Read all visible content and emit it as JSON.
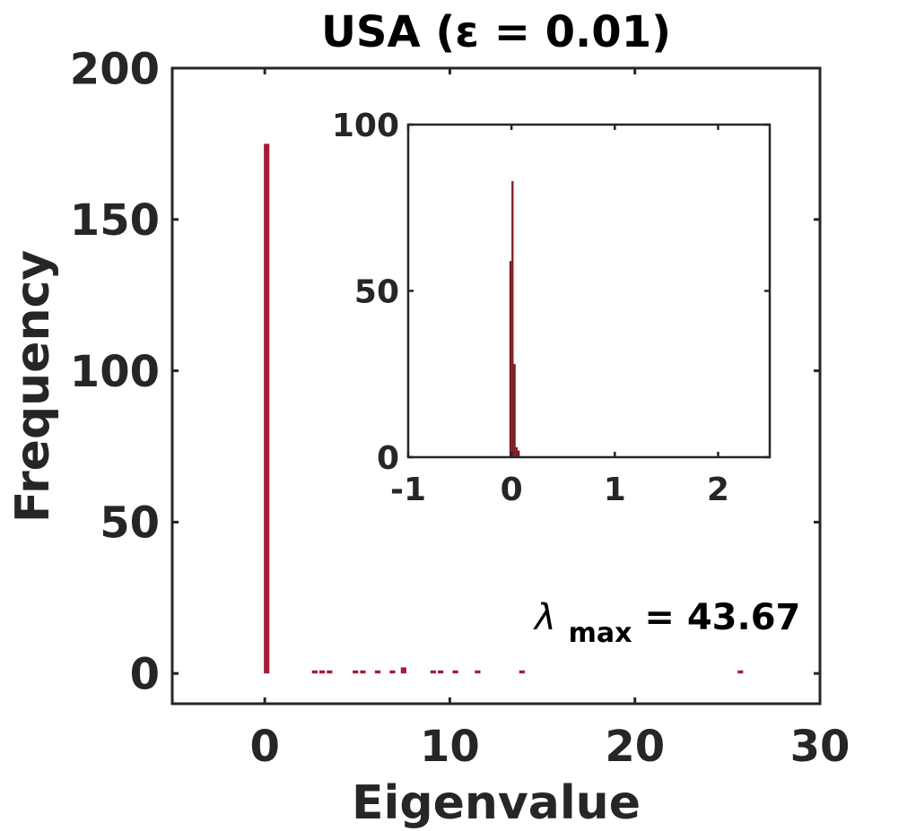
{
  "chart_data": [
    {
      "type": "bar",
      "title": "USA (ε = 0.01)",
      "xlabel": "Eigenvalue",
      "ylabel": "Frequency",
      "xlim": [
        -5,
        30
      ],
      "ylim": [
        -10,
        200
      ],
      "xticks": [
        "0",
        "10",
        "20",
        "30"
      ],
      "yticks": [
        "0",
        "50",
        "100",
        "150",
        "200"
      ],
      "grid": false,
      "color": "#a51c36",
      "annotation": {
        "symbol": "λ",
        "subscript": "max",
        "text": " = 43.67"
      },
      "bins": [
        {
          "x": 0.1,
          "y": 175
        },
        {
          "x": 2.7,
          "y": 1
        },
        {
          "x": 3.1,
          "y": 1
        },
        {
          "x": 3.5,
          "y": 1
        },
        {
          "x": 4.9,
          "y": 1
        },
        {
          "x": 5.3,
          "y": 1
        },
        {
          "x": 6.1,
          "y": 1
        },
        {
          "x": 6.9,
          "y": 1
        },
        {
          "x": 7.5,
          "y": 2
        },
        {
          "x": 9.1,
          "y": 1
        },
        {
          "x": 9.5,
          "y": 1
        },
        {
          "x": 10.3,
          "y": 1
        },
        {
          "x": 11.5,
          "y": 1
        },
        {
          "x": 13.9,
          "y": 1
        },
        {
          "x": 25.7,
          "y": 1
        }
      ]
    },
    {
      "type": "bar",
      "role": "inset",
      "xlim": [
        -1,
        2.5
      ],
      "ylim": [
        0,
        100
      ],
      "xticks": [
        "-1",
        "0",
        "1",
        "2"
      ],
      "yticks": [
        "0",
        "50",
        "100"
      ],
      "color": "#7d1a24",
      "bins": [
        {
          "x": -0.01,
          "y": 59
        },
        {
          "x": 0.01,
          "y": 83
        },
        {
          "x": 0.03,
          "y": 28
        },
        {
          "x": 0.05,
          "y": 3
        },
        {
          "x": 0.07,
          "y": 2
        }
      ]
    }
  ]
}
